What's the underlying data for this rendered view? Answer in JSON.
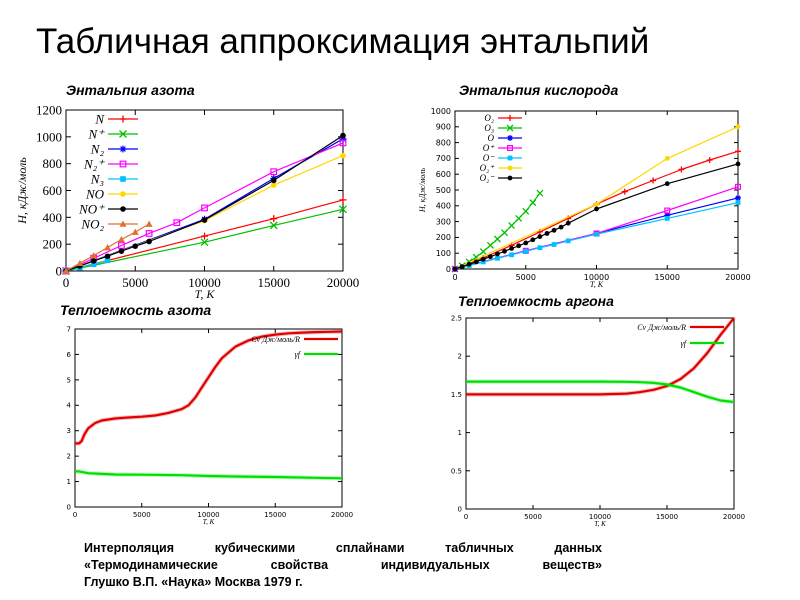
{
  "slide": {
    "title": "Табличная аппроксимация энтальпий",
    "footnote": {
      "line1": "Интерполяция кубическими сплайнами табличных данных",
      "line2": "«Термодинамические свойства индивидуальных веществ»",
      "line3": "Глушко В.П. «Наука» Москва 1979 г."
    }
  },
  "chart_data": [
    {
      "id": "n2",
      "type": "line",
      "title": "Энтальпия азота",
      "xlabel": "T, K",
      "ylabel": "H, кДж/моль",
      "xlim": [
        0,
        20000
      ],
      "ylim": [
        0,
        1200
      ],
      "xticks": [
        0,
        5000,
        10000,
        15000,
        20000
      ],
      "yticks": [
        0,
        200,
        400,
        600,
        800,
        1000,
        1200
      ],
      "grid": false,
      "legend": "top-left",
      "series": [
        {
          "name": "N",
          "color": "#ff0000",
          "marker": "plus",
          "x": [
            0,
            10000,
            15000,
            20000
          ],
          "y": [
            0,
            260,
            390,
            530
          ]
        },
        {
          "name": "N⁺",
          "color": "#00c000",
          "marker": "cross",
          "x": [
            0,
            10000,
            15000,
            20000
          ],
          "y": [
            0,
            215,
            340,
            460
          ]
        },
        {
          "name": "N₂",
          "color": "#0000ff",
          "marker": "star",
          "x": [
            0,
            10000,
            15000,
            20000
          ],
          "y": [
            0,
            385,
            690,
            985
          ]
        },
        {
          "name": "N₂⁺",
          "color": "#ff00ff",
          "marker": "square",
          "x": [
            0,
            2000,
            4000,
            6000,
            8000,
            10000,
            15000,
            20000
          ],
          "y": [
            0,
            95,
            190,
            280,
            360,
            470,
            740,
            955
          ]
        },
        {
          "name": "N₃",
          "color": "#00c0ff",
          "marker": "filled-square",
          "x": [
            0,
            1000,
            2000,
            3000
          ],
          "y": [
            0,
            25,
            50,
            80
          ]
        },
        {
          "name": "NO",
          "color": "#ffd700",
          "marker": "filled-circle",
          "x": [
            0,
            10000,
            15000,
            20000
          ],
          "y": [
            0,
            375,
            640,
            860
          ]
        },
        {
          "name": "NO⁺",
          "color": "#000000",
          "marker": "filled-circle",
          "x": [
            0,
            1000,
            2000,
            3000,
            4000,
            5000,
            6000,
            10000,
            15000,
            20000
          ],
          "y": [
            0,
            37,
            75,
            110,
            148,
            185,
            220,
            380,
            675,
            1010
          ]
        },
        {
          "name": "NO₂",
          "color": "#e07030",
          "marker": "filled-triangle",
          "x": [
            0,
            1000,
            2000,
            3000,
            4000,
            5000,
            6000
          ],
          "y": [
            0,
            58,
            115,
            175,
            235,
            290,
            350
          ]
        }
      ]
    },
    {
      "id": "o2",
      "type": "line",
      "title": "Энтальпия кислорода",
      "xlabel": "T, K",
      "ylabel": "H, кДж/моль",
      "xlim": [
        0,
        20000
      ],
      "ylim": [
        0,
        1000
      ],
      "xticks": [
        0,
        5000,
        10000,
        15000,
        20000
      ],
      "yticks": [
        0,
        100,
        200,
        300,
        400,
        500,
        600,
        700,
        800,
        900,
        1000
      ],
      "grid": false,
      "legend": "top-left",
      "series": [
        {
          "name": "O₂",
          "color": "#ff0000",
          "marker": "plus",
          "x": [
            0,
            2000,
            4000,
            6000,
            8000,
            10000,
            12000,
            14000,
            16000,
            18000,
            20000
          ],
          "y": [
            0,
            70,
            150,
            235,
            320,
            410,
            490,
            560,
            630,
            690,
            745
          ]
        },
        {
          "name": "O₃",
          "color": "#00c000",
          "marker": "cross",
          "x": [
            0,
            500,
            1000,
            1500,
            2000,
            2500,
            3000,
            3500,
            4000,
            4500,
            5000,
            5500,
            6000
          ],
          "y": [
            0,
            20,
            45,
            75,
            110,
            150,
            190,
            230,
            275,
            320,
            365,
            420,
            480
          ]
        },
        {
          "name": "O",
          "color": "#0000ff",
          "marker": "star",
          "x": [
            0,
            5000,
            10000,
            15000,
            20000
          ],
          "y": [
            0,
            115,
            225,
            340,
            450
          ]
        },
        {
          "name": "O⁺",
          "color": "#ff00ff",
          "marker": "square",
          "x": [
            0,
            5000,
            10000,
            15000,
            20000
          ],
          "y": [
            0,
            115,
            225,
            370,
            520
          ]
        },
        {
          "name": "O⁻",
          "color": "#00c0ff",
          "marker": "filled-square",
          "x": [
            0,
            1000,
            2000,
            3000,
            4000,
            5000,
            6000,
            7000,
            8000,
            10000,
            15000,
            20000
          ],
          "y": [
            0,
            22,
            45,
            68,
            90,
            112,
            135,
            155,
            178,
            220,
            320,
            420
          ]
        },
        {
          "name": "O₂⁺",
          "color": "#ffd700",
          "marker": "filled-circle",
          "x": [
            0,
            10000,
            15000,
            20000
          ],
          "y": [
            0,
            410,
            700,
            900
          ]
        },
        {
          "name": "O₂⁻",
          "color": "#000000",
          "marker": "filled-circle",
          "x": [
            0,
            500,
            1000,
            1500,
            2000,
            2500,
            3000,
            3500,
            4000,
            4500,
            5000,
            5500,
            6000,
            6500,
            7000,
            7500,
            8000,
            10000,
            15000,
            20000
          ],
          "y": [
            0,
            15,
            30,
            45,
            62,
            78,
            95,
            112,
            130,
            147,
            165,
            185,
            205,
            225,
            245,
            265,
            290,
            380,
            540,
            665
          ]
        }
      ]
    },
    {
      "id": "cv_n2",
      "type": "line",
      "title": "Теплоемкость азота",
      "xlabel": "T, K",
      "ylabel": "",
      "xlim": [
        0,
        20000
      ],
      "ylim": [
        0,
        7
      ],
      "xticks": [
        0,
        5000,
        10000,
        15000,
        20000
      ],
      "yticks": [
        0,
        1,
        2,
        3,
        4,
        5,
        6,
        7
      ],
      "grid": false,
      "legend": "top-right",
      "series": [
        {
          "name": "Cv Дж/моль/R",
          "color": "#e00000",
          "x": [
            0,
            300,
            500,
            700,
            1000,
            1500,
            2000,
            3000,
            4000,
            5000,
            6000,
            7000,
            8000,
            8500,
            9000,
            9500,
            10000,
            10500,
            11000,
            12000,
            13000,
            14000,
            15000,
            16000,
            17000,
            18000,
            19000,
            20000
          ],
          "y": [
            2.5,
            2.5,
            2.6,
            2.85,
            3.1,
            3.3,
            3.4,
            3.48,
            3.52,
            3.55,
            3.6,
            3.7,
            3.85,
            4.0,
            4.3,
            4.7,
            5.1,
            5.5,
            5.85,
            6.3,
            6.55,
            6.7,
            6.78,
            6.83,
            6.86,
            6.88,
            6.89,
            6.9
          ]
        },
        {
          "name": "γf",
          "color": "#00e000",
          "x": [
            0,
            300,
            1000,
            2000,
            3000,
            5000,
            8000,
            10000,
            12000,
            15000,
            18000,
            20000
          ],
          "y": [
            1.4,
            1.4,
            1.33,
            1.3,
            1.28,
            1.27,
            1.25,
            1.22,
            1.2,
            1.18,
            1.15,
            1.13
          ]
        }
      ]
    },
    {
      "id": "cv_ar",
      "type": "line",
      "title": "Теплоемкость аргона",
      "xlabel": "T, K",
      "ylabel": "",
      "xlim": [
        0,
        20000
      ],
      "ylim": [
        0,
        2.5
      ],
      "xticks": [
        0,
        5000,
        10000,
        15000,
        20000
      ],
      "yticks": [
        0,
        0.5,
        1,
        1.5,
        2,
        2.5
      ],
      "grid": false,
      "legend": "top-right",
      "series": [
        {
          "name": "Cv Дж/моль/R",
          "color": "#e00000",
          "x": [
            0,
            5000,
            10000,
            12000,
            13000,
            14000,
            15000,
            16000,
            17000,
            18000,
            19000,
            20000
          ],
          "y": [
            1.5,
            1.5,
            1.5,
            1.51,
            1.53,
            1.56,
            1.61,
            1.7,
            1.84,
            2.04,
            2.28,
            2.5
          ]
        },
        {
          "name": "γf",
          "color": "#00e000",
          "x": [
            0,
            5000,
            10000,
            12000,
            13000,
            14000,
            15000,
            16000,
            17000,
            18000,
            19000,
            20000
          ],
          "y": [
            1.667,
            1.667,
            1.667,
            1.665,
            1.66,
            1.65,
            1.63,
            1.59,
            1.53,
            1.47,
            1.42,
            1.4
          ]
        }
      ]
    }
  ]
}
